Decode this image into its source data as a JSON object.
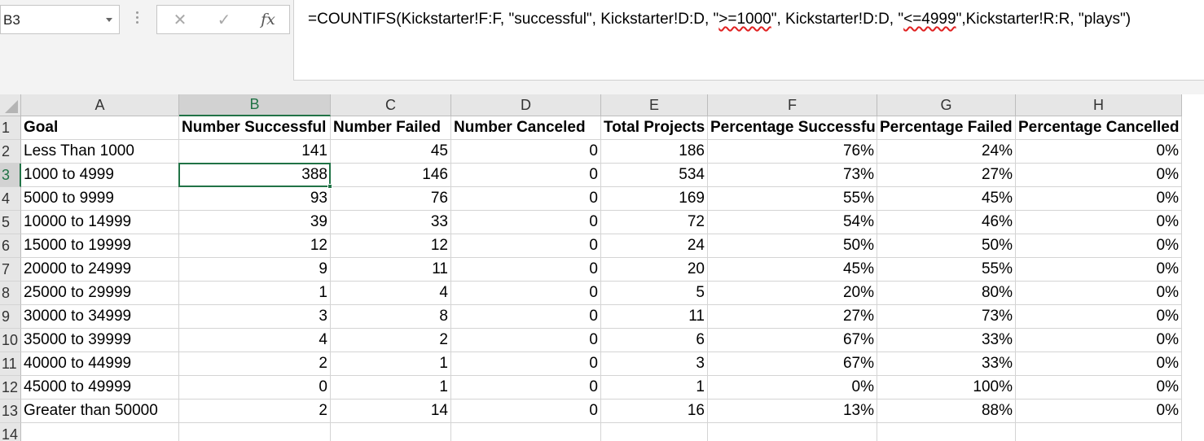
{
  "formula_bar": {
    "name_box": "B3",
    "formula_before": "=COUNTIFS(Kickstarter!F:F, \"successful\", Kickstarter!D:D, \"",
    "formula_err1": ">=1000",
    "formula_mid": "\", Kickstarter!D:D, \"",
    "formula_err2": "<=4999",
    "formula_after": "\",Kickstarter!R:R, \"plays\")"
  },
  "columns": [
    "A",
    "B",
    "C",
    "D",
    "E",
    "F",
    "G",
    "H"
  ],
  "row_numbers": [
    "1",
    "2",
    "3",
    "4",
    "5",
    "6",
    "7",
    "8",
    "9",
    "10",
    "11",
    "12",
    "13",
    "14"
  ],
  "selected": {
    "cell": "B3",
    "column": "B",
    "row": "3"
  },
  "headers": [
    "Goal",
    "Number Successful",
    "Number Failed",
    "Number Canceled",
    "Total Projects",
    "Percentage Successful",
    "Percentage Failed",
    "Percentage Cancelled"
  ],
  "rows": [
    [
      "Less Than 1000",
      "141",
      "45",
      "0",
      "186",
      "76%",
      "24%",
      "0%"
    ],
    [
      "1000 to 4999",
      "388",
      "146",
      "0",
      "534",
      "73%",
      "27%",
      "0%"
    ],
    [
      "5000 to 9999",
      "93",
      "76",
      "0",
      "169",
      "55%",
      "45%",
      "0%"
    ],
    [
      "10000 to 14999",
      "39",
      "33",
      "0",
      "72",
      "54%",
      "46%",
      "0%"
    ],
    [
      "15000 to 19999",
      "12",
      "12",
      "0",
      "24",
      "50%",
      "50%",
      "0%"
    ],
    [
      "20000 to 24999",
      "9",
      "11",
      "0",
      "20",
      "45%",
      "55%",
      "0%"
    ],
    [
      "25000 to 29999",
      "1",
      "4",
      "0",
      "5",
      "20%",
      "80%",
      "0%"
    ],
    [
      "30000 to 34999",
      "3",
      "8",
      "0",
      "11",
      "27%",
      "73%",
      "0%"
    ],
    [
      "35000 to 39999",
      "4",
      "2",
      "0",
      "6",
      "67%",
      "33%",
      "0%"
    ],
    [
      "40000 to 44999",
      "2",
      "1",
      "0",
      "3",
      "67%",
      "33%",
      "0%"
    ],
    [
      "45000 to 49999",
      "0",
      "1",
      "0",
      "1",
      "0%",
      "100%",
      "0%"
    ],
    [
      "Greater than 50000",
      "2",
      "14",
      "0",
      "16",
      "13%",
      "88%",
      "0%"
    ]
  ],
  "colors": {
    "accent": "#217346",
    "error_underline": "#e02020"
  }
}
